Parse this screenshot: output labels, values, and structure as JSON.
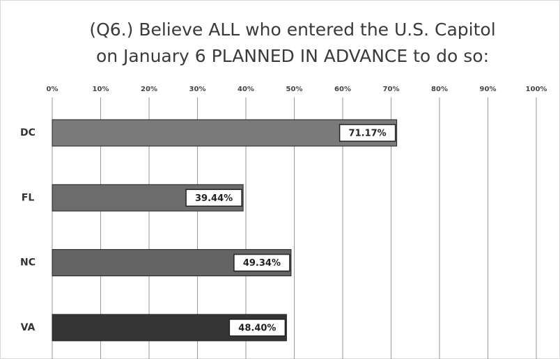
{
  "chart_data": {
    "type": "bar",
    "orientation": "horizontal",
    "title": [
      "(Q6.) Believe ALL who entered the U.S. Capitol",
      "on January 6 PLANNED IN ADVANCE to do so:"
    ],
    "categories": [
      "DC",
      "FL",
      "NC",
      "VA"
    ],
    "values": [
      71.17,
      39.44,
      49.34,
      48.4
    ],
    "value_labels": [
      "71.17%",
      "39.44%",
      "49.34%",
      "48.40%"
    ],
    "colors": [
      "#7a7a7a",
      "#6c6c6c",
      "#646464",
      "#353535"
    ],
    "xlim": [
      0,
      100
    ],
    "xticks": [
      {
        "value": 0,
        "label": "0%"
      },
      {
        "value": 10,
        "label": "10%"
      },
      {
        "value": 20,
        "label": "20%"
      },
      {
        "value": 30,
        "label": "30%"
      },
      {
        "value": 40,
        "label": "40%"
      },
      {
        "value": 50,
        "label": "50%"
      },
      {
        "value": 60,
        "label": "60%"
      },
      {
        "value": 70,
        "label": "70%"
      },
      {
        "value": 80,
        "label": "80%"
      },
      {
        "value": 90,
        "label": "90%"
      },
      {
        "value": 100,
        "label": "100%"
      }
    ],
    "grid": true
  }
}
